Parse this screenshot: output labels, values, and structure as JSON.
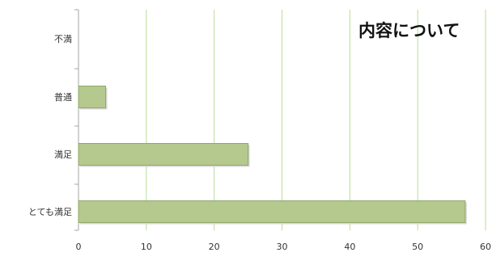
{
  "chart_data": {
    "type": "bar",
    "orientation": "horizontal",
    "title": "内容について",
    "categories": [
      "とても満足",
      "満足",
      "普通",
      "不満"
    ],
    "values": [
      57,
      25,
      4,
      0
    ],
    "xlim": [
      0,
      60
    ],
    "x_ticks": [
      0,
      10,
      20,
      30,
      40,
      50,
      60
    ],
    "grid": "vertical",
    "legend": "none",
    "colors": {
      "bar_fill": "#b5c98e",
      "bar_stroke": "#8fa86a",
      "bar_shadow": "#d9d9d9",
      "grid": "#b9dc98",
      "axis": "#a6a6a6"
    }
  }
}
